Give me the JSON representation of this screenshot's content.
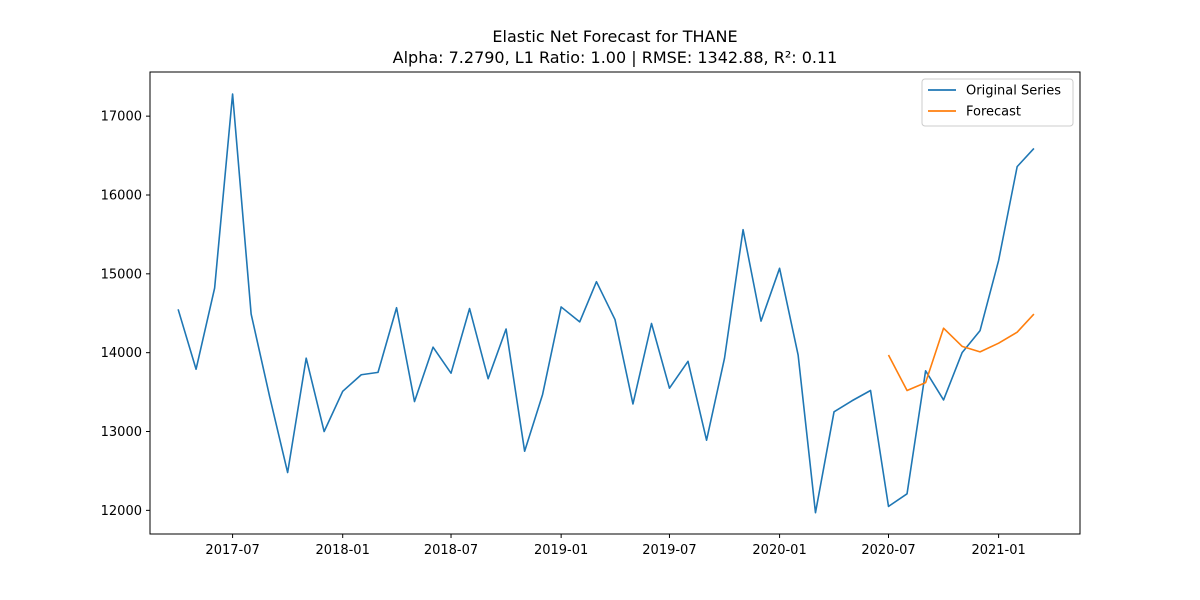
{
  "chart_data": {
    "type": "line",
    "title": "Elastic Net Forecast for THANE",
    "subtitle": "Alpha: 7.2790, L1 Ratio: 1.00 | RMSE: 1342.88, R²: 0.11",
    "xlabel": "",
    "ylabel": "",
    "x_ticks": [
      "2017-07",
      "2018-01",
      "2018-07",
      "2019-01",
      "2019-07",
      "2020-01",
      "2020-07",
      "2021-01"
    ],
    "y_ticks": [
      12000,
      13000,
      14000,
      15000,
      16000,
      17000
    ],
    "xlim": [
      "2017-02-13",
      "2021-05-17"
    ],
    "ylim": [
      11700,
      17560
    ],
    "legend_position": "top-right",
    "grid": false,
    "series": [
      {
        "name": "Original Series",
        "color": "#1f77b4",
        "x": [
          "2017-04",
          "2017-05",
          "2017-06",
          "2017-07",
          "2017-08",
          "2017-09",
          "2017-10",
          "2017-11",
          "2017-12",
          "2018-01",
          "2018-02",
          "2018-03",
          "2018-04",
          "2018-05",
          "2018-06",
          "2018-07",
          "2018-08",
          "2018-09",
          "2018-10",
          "2018-11",
          "2018-12",
          "2019-01",
          "2019-02",
          "2019-03",
          "2019-04",
          "2019-05",
          "2019-06",
          "2019-07",
          "2019-08",
          "2019-09",
          "2019-10",
          "2019-11",
          "2019-12",
          "2020-01",
          "2020-02",
          "2020-03",
          "2020-04",
          "2020-05",
          "2020-06",
          "2020-07",
          "2020-08",
          "2020-09",
          "2020-10",
          "2020-11",
          "2020-12",
          "2021-01",
          "2021-02",
          "2021-03"
        ],
        "values": [
          14550,
          13790,
          14820,
          17280,
          14490,
          13440,
          12480,
          13930,
          13000,
          13510,
          13720,
          13750,
          14570,
          13380,
          14070,
          13740,
          14560,
          13670,
          14300,
          12750,
          13470,
          14580,
          14390,
          14900,
          14420,
          13350,
          14370,
          13550,
          13890,
          12890,
          13930,
          15560,
          14400,
          15070,
          13970,
          11970,
          13250,
          13390,
          13520,
          12050,
          12210,
          13770,
          13400,
          14000,
          14280,
          15170,
          16360,
          16590
        ]
      },
      {
        "name": "Forecast",
        "color": "#ff7f0e",
        "x": [
          "2020-07",
          "2020-08",
          "2020-09",
          "2020-10",
          "2020-11",
          "2020-12",
          "2021-01",
          "2021-02",
          "2021-03"
        ],
        "values": [
          13970,
          13520,
          13620,
          14310,
          14080,
          14010,
          14120,
          14260,
          14490
        ]
      }
    ]
  }
}
